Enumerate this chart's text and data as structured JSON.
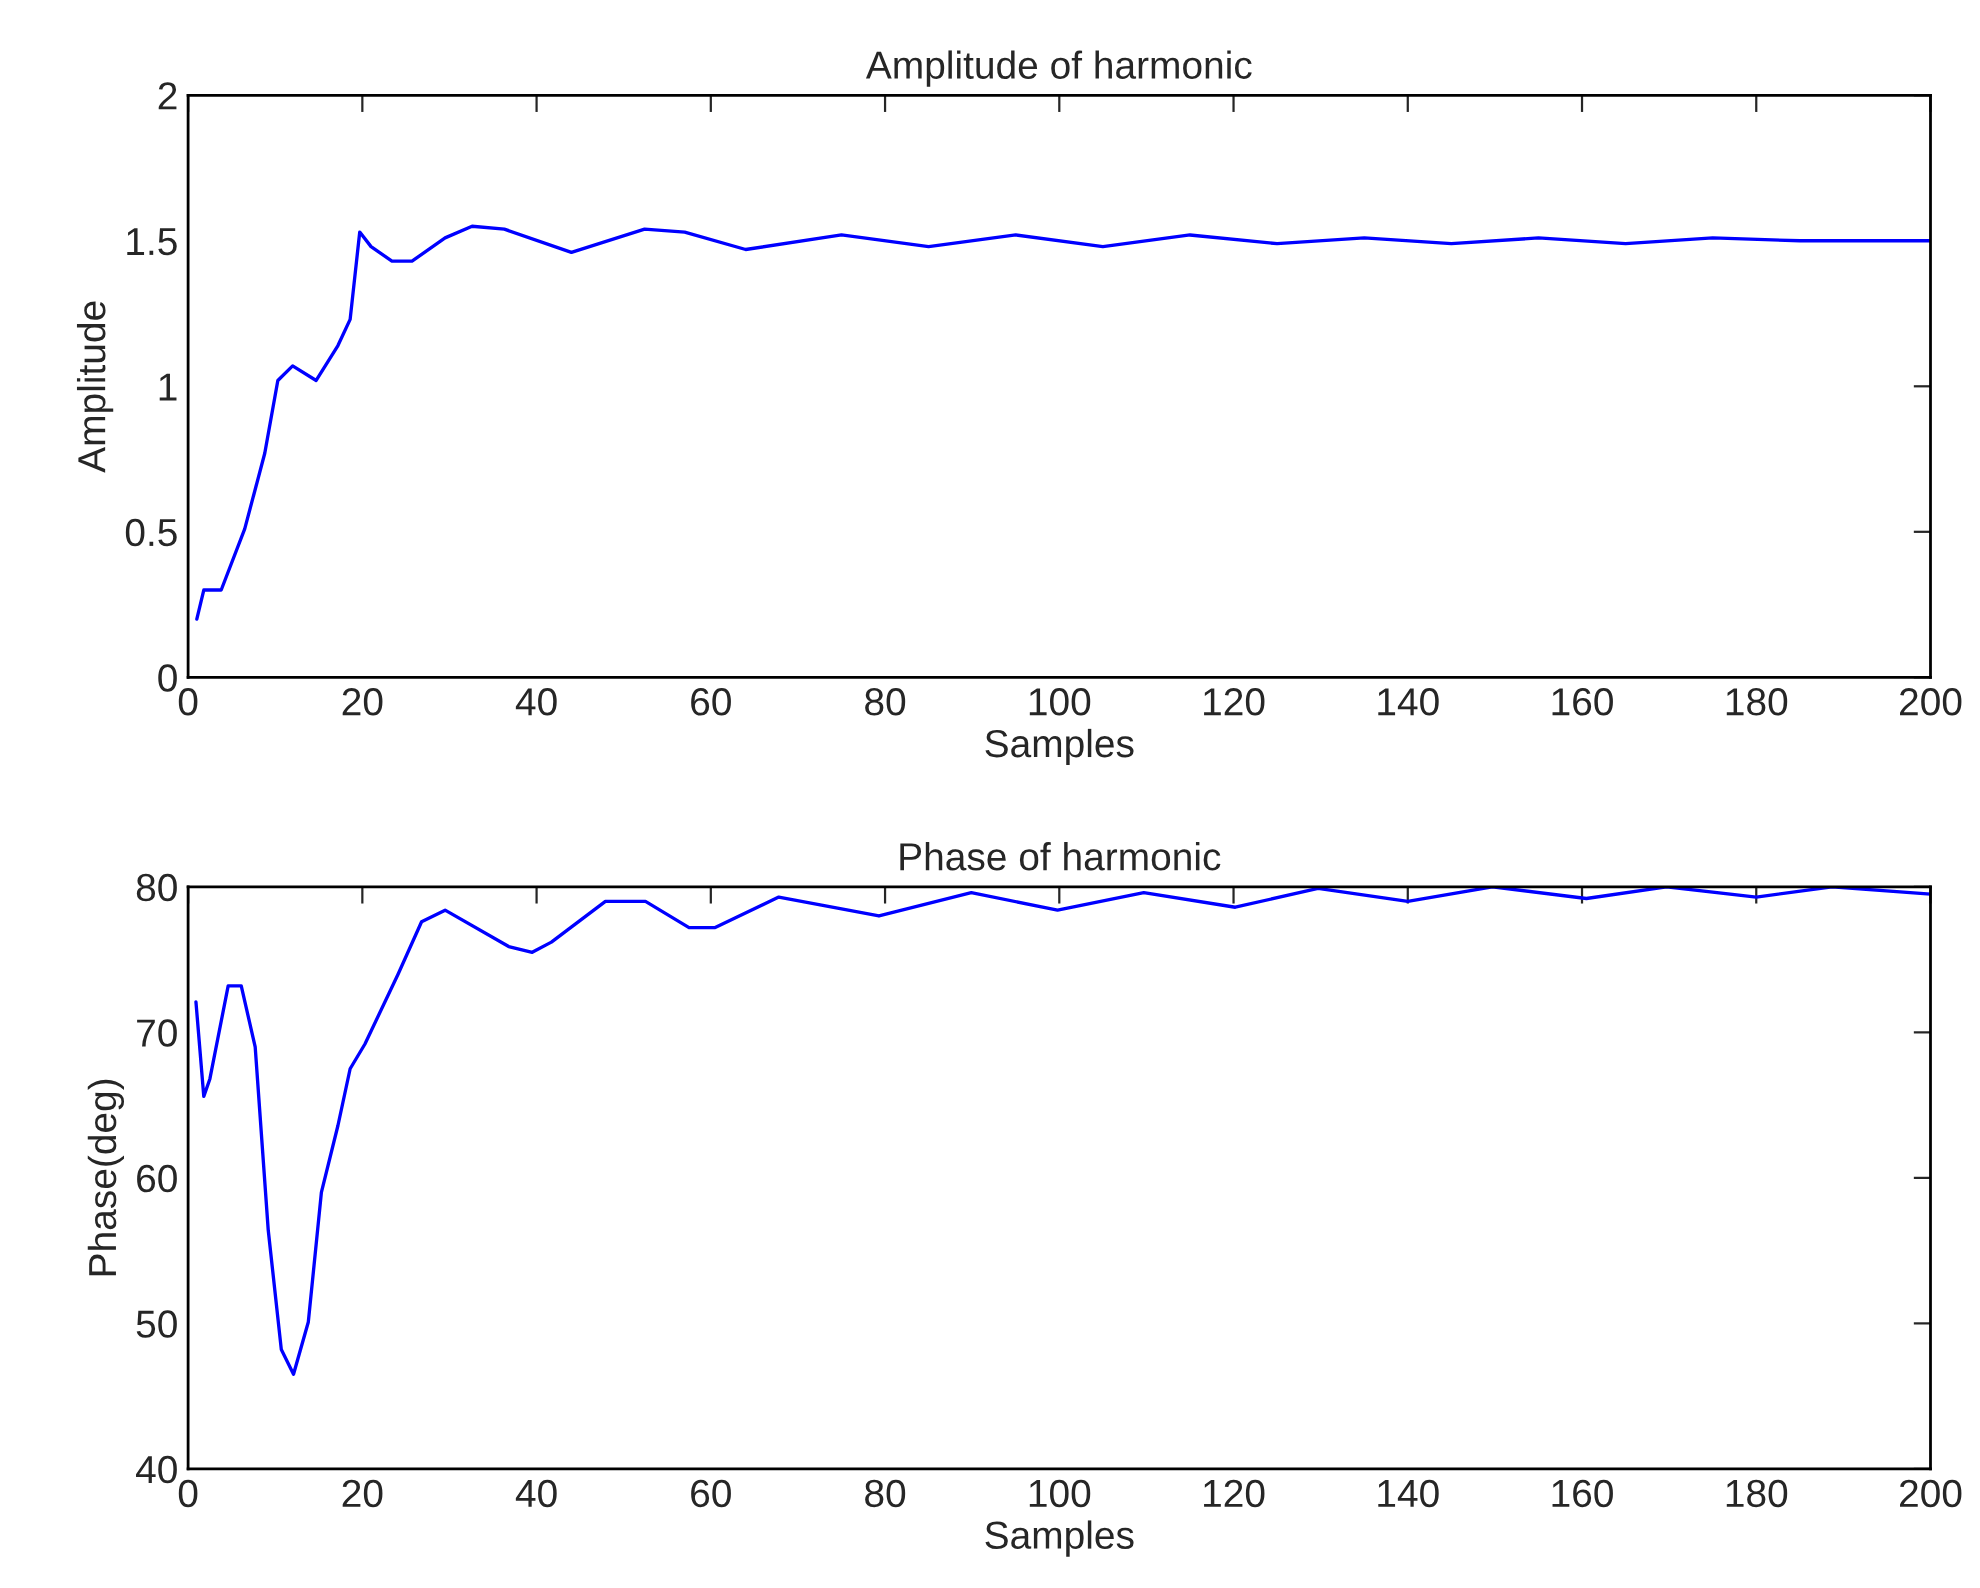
{
  "chart_data": [
    {
      "type": "line",
      "title": "Amplitude of harmonic",
      "xlabel": "Samples",
      "ylabel": "Amplitude",
      "xlim": [
        0,
        200
      ],
      "ylim": [
        0,
        2
      ],
      "xticks": [
        0,
        20,
        40,
        60,
        80,
        100,
        120,
        140,
        160,
        180,
        200
      ],
      "yticks": [
        0,
        0.5,
        1,
        1.5,
        2
      ],
      "grid": false,
      "legend": false,
      "series": [
        {
          "color": "#0000ff",
          "x": [
            1,
            1.8,
            3.8,
            6.5,
            8.8,
            10.3,
            12,
            14.7,
            17.2,
            18.6,
            19.7,
            21,
            23.4,
            25.7,
            29.5,
            32.6,
            36.3,
            44,
            52.4,
            57,
            64,
            75,
            85,
            95,
            105,
            115,
            125,
            135,
            145,
            155,
            165,
            175,
            185,
            200
          ],
          "values": [
            0.2,
            0.3,
            0.3,
            0.51,
            0.77,
            1.02,
            1.07,
            1.02,
            1.14,
            1.23,
            1.53,
            1.48,
            1.43,
            1.43,
            1.51,
            1.55,
            1.54,
            1.46,
            1.54,
            1.53,
            1.47,
            1.52,
            1.48,
            1.52,
            1.48,
            1.52,
            1.49,
            1.51,
            1.49,
            1.51,
            1.49,
            1.51,
            1.5,
            1.5
          ]
        }
      ]
    },
    {
      "type": "line",
      "title": "Phase of harmonic",
      "xlabel": "Samples",
      "ylabel": "Phase(deg)",
      "xlim": [
        0,
        200
      ],
      "ylim": [
        40,
        80
      ],
      "xticks": [
        0,
        20,
        40,
        60,
        80,
        100,
        120,
        140,
        160,
        180,
        200
      ],
      "yticks": [
        40,
        50,
        60,
        70,
        80
      ],
      "grid": false,
      "legend": false,
      "series": [
        {
          "color": "#0000ff",
          "x": [
            0.9,
            1.8,
            2.5,
            4.6,
            6.1,
            7.7,
            9.2,
            10.7,
            12.1,
            13.8,
            15.3,
            17.2,
            18.6,
            20.3,
            24.1,
            26.8,
            29.5,
            36.8,
            39.5,
            41.7,
            47.9,
            52.5,
            57.5,
            60.5,
            67.8,
            79.3,
            89.9,
            99.8,
            109.7,
            120.2,
            129.7,
            140,
            149.7,
            160.5,
            169.7,
            180,
            188.7,
            200
          ],
          "values": [
            72.1,
            65.6,
            66.8,
            73.2,
            73.2,
            69,
            56.4,
            48.2,
            46.5,
            50.1,
            59,
            63.6,
            67.5,
            69.2,
            74,
            77.6,
            78.4,
            75.9,
            75.5,
            76.2,
            79,
            79,
            77.2,
            77.2,
            79.3,
            78,
            79.6,
            78.4,
            79.6,
            78.6,
            79.9,
            79,
            80,
            79.2,
            80,
            79.3,
            80,
            79.5
          ]
        }
      ]
    }
  ]
}
